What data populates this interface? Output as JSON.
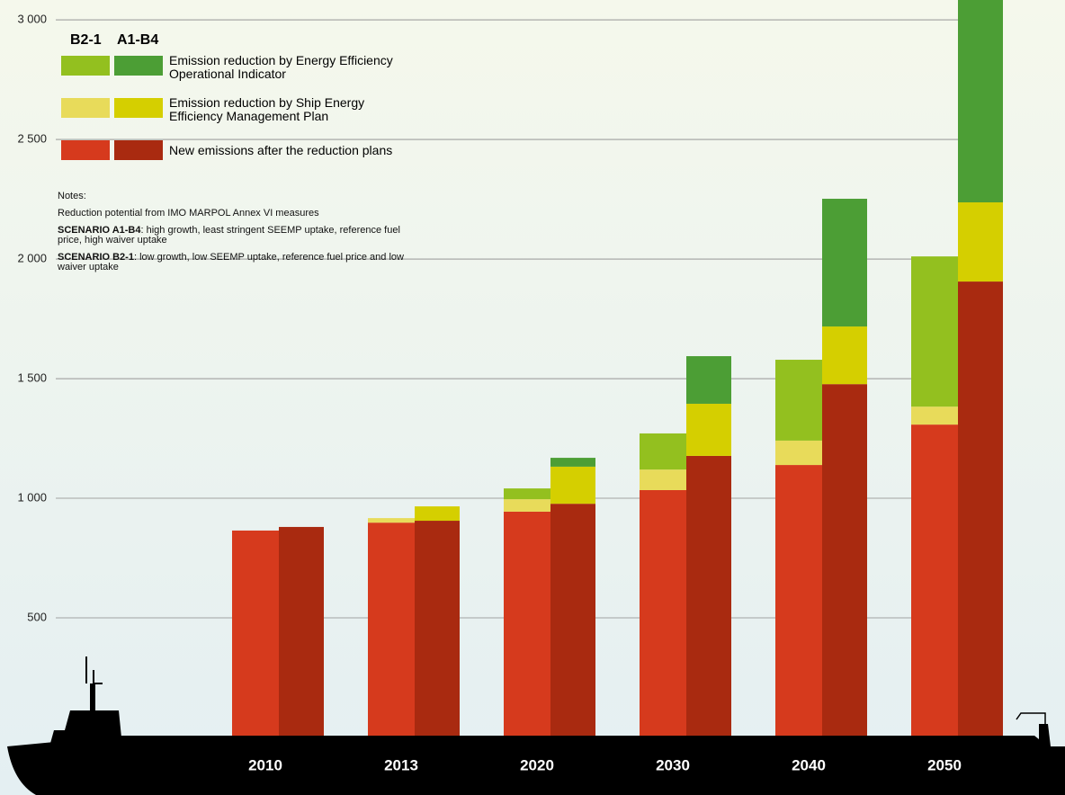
{
  "chart_data": {
    "type": "grouped-stacked-bar",
    "categories": [
      "2010",
      "2013",
      "2020",
      "2030",
      "2040",
      "2050"
    ],
    "groups": [
      "B2-1",
      "A1-B4"
    ],
    "series": [
      {
        "name": "New emissions after the reduction plans",
        "colors": [
          "#d63a1d",
          "#a92a10"
        ],
        "values": [
          [
            865,
            898,
            944,
            1034,
            1139,
            1308
          ],
          [
            880,
            906,
            977,
            1177,
            1477,
            1906
          ]
        ]
      },
      {
        "name": "Emission reduction by Ship Energy Efficiency Management Plan",
        "colors": [
          "#e8db5a",
          "#d5cf00"
        ],
        "values": [
          [
            0,
            19,
            52,
            86,
            102,
            75
          ],
          [
            0,
            60,
            155,
            218,
            241,
            331
          ]
        ]
      },
      {
        "name": "Emission reduction by Energy Efficiency Operational Indicator",
        "colors": [
          "#93c01f",
          "#4c9e35"
        ],
        "values": [
          [
            0,
            0,
            45,
            151,
            338,
            628
          ],
          [
            0,
            0,
            37,
            199,
            534,
            846
          ]
        ]
      }
    ],
    "ylim": [
      0,
      3083
    ],
    "yticks": [
      500,
      {
        "value": 1000,
        "label": "1 000"
      },
      {
        "value": 1500,
        "label": "1 500"
      },
      {
        "value": 2000,
        "label": "2 000"
      },
      {
        "value": 2500,
        "label": "2 500"
      },
      {
        "value": 3000,
        "label": "3 000"
      }
    ],
    "grid": true,
    "notes": {
      "heading": "Notes:",
      "intro": "Reduction potential from IMO MARPOL Annex VI  measures",
      "items": [
        {
          "title": "SCENARIO A1-B4",
          "text": ": high growth, least stringent SEEMP uptake, reference fuel price, high waiver uptake"
        },
        {
          "title": "SCENARIO B2-1",
          "text": ": low growth, low SEEMP uptake, reference fuel price and low waiver uptake"
        }
      ]
    }
  }
}
